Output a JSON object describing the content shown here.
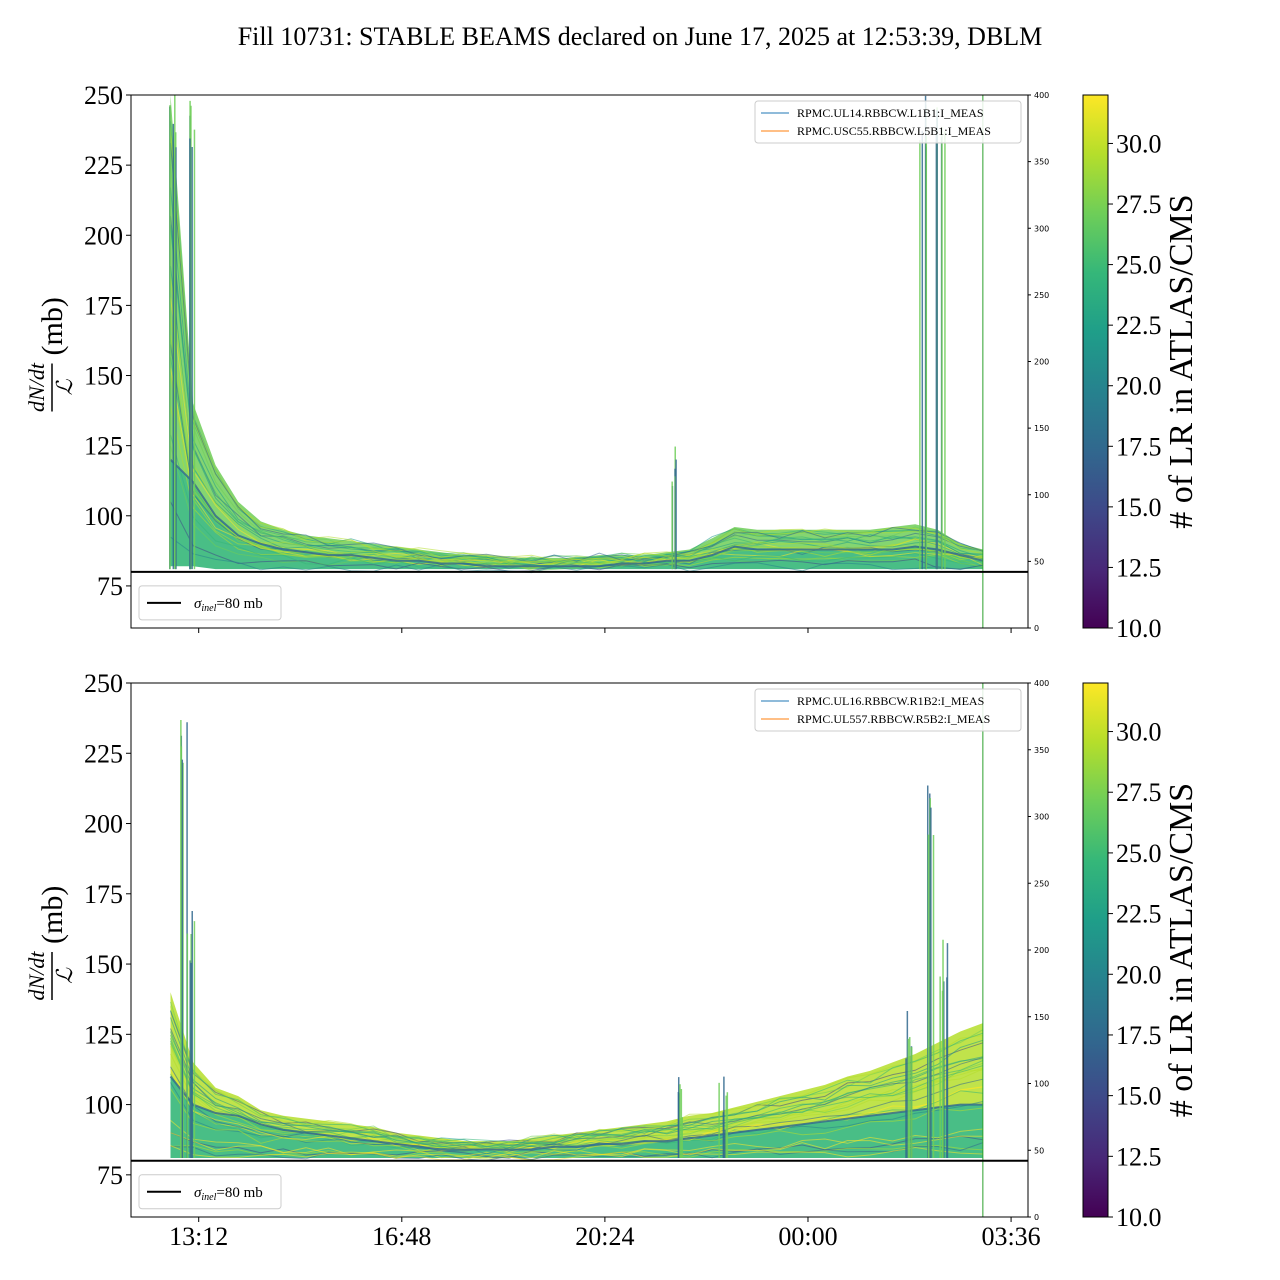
{
  "figure": {
    "title": "Fill 10731: STABLE BEAMS declared on June 17, 2025 at 12:53:39, DBLM"
  },
  "colors": {
    "viridis": [
      "#440154",
      "#482878",
      "#3e4989",
      "#31688e",
      "#26828e",
      "#1f9e89",
      "#35b779",
      "#6ece58",
      "#b5de2b",
      "#fde725"
    ],
    "reference_line": "#000000",
    "legend_line_1": "#1f77b4",
    "legend_line_2": "#ff7f0e",
    "marker_line": "#2ca02c"
  },
  "chart_data": [
    {
      "type": "area",
      "panel": "top",
      "ylabel_numerator": "dN/dt",
      "ylabel_denominator": "ℒ",
      "ylabel_unit": "(mb)",
      "ylim": [
        60,
        250
      ],
      "yticks": [
        "250",
        "225",
        "200",
        "175",
        "150",
        "125",
        "100",
        "75"
      ],
      "ytick_values": [
        250,
        225,
        200,
        175,
        150,
        125,
        100,
        75
      ],
      "y2lim": [
        0,
        400
      ],
      "y2ticks": [
        "400",
        "350",
        "300",
        "250",
        "200",
        "150",
        "100",
        "50",
        "0"
      ],
      "y2tick_values": [
        400,
        350,
        300,
        250,
        200,
        150,
        100,
        50,
        0
      ],
      "xlim_hours": [
        12.0,
        27.9
      ],
      "reference_line": {
        "value": 80,
        "label": "σinel=80 mb",
        "label_main": "σ",
        "label_sub": "inel",
        "label_rest": "=80 mb"
      },
      "marker_x_hours": 27.1,
      "legend": [
        "RPMC.UL14.RBBCW.L1B1:I_MEAS",
        "RPMC.USC55.RBBCW.L5B1:I_MEAS"
      ],
      "legend_location": "top-right",
      "band_x_hours": [
        12.7,
        13.1,
        13.5,
        13.9,
        14.3,
        14.7,
        15.1,
        15.5,
        15.9,
        16.3,
        16.7,
        17.1,
        17.5,
        17.9,
        18.3,
        18.7,
        19.1,
        19.5,
        19.9,
        20.3,
        20.7,
        21.1,
        21.5,
        21.9,
        22.3,
        22.7,
        23.1,
        23.5,
        23.9,
        24.3,
        24.7,
        25.1,
        25.5,
        25.9,
        26.3,
        26.7,
        27.1
      ],
      "band_upper": [
        250,
        140,
        118,
        105,
        98,
        95,
        93,
        92,
        91,
        90,
        89,
        88,
        87,
        86,
        86,
        85,
        85,
        85,
        85,
        86,
        86,
        86,
        87,
        88,
        92,
        96,
        95,
        95,
        95,
        95,
        95,
        95,
        96,
        97,
        95,
        90,
        88
      ],
      "band_median": [
        120,
        112,
        100,
        93,
        90,
        88,
        87,
        86,
        86,
        85,
        84,
        84,
        83,
        83,
        82,
        82,
        82,
        82,
        82,
        82,
        83,
        83,
        84,
        84,
        86,
        89,
        88,
        88,
        88,
        88,
        88,
        88,
        88,
        89,
        88,
        86,
        84
      ],
      "band_lower": [
        82,
        82,
        81,
        81,
        81,
        81,
        81,
        81,
        81,
        81,
        81,
        81,
        81,
        81,
        81,
        81,
        81,
        81,
        81,
        81,
        81,
        81,
        81,
        81,
        81,
        81,
        81,
        81,
        81,
        81,
        81,
        81,
        81,
        81,
        81,
        81,
        81
      ],
      "spikes": [
        {
          "x_hours": 12.75,
          "y_top": 250
        },
        {
          "x_hours": 13.05,
          "y_top": 250
        },
        {
          "x_hours": 21.6,
          "y_top": 125
        },
        {
          "x_hours": 26.05,
          "y_top": 250
        },
        {
          "x_hours": 26.35,
          "y_top": 250
        }
      ]
    },
    {
      "type": "area",
      "panel": "bottom",
      "ylabel_numerator": "dN/dt",
      "ylabel_denominator": "ℒ",
      "ylabel_unit": "(mb)",
      "ylim": [
        60,
        250
      ],
      "yticks": [
        "250",
        "225",
        "200",
        "175",
        "150",
        "125",
        "100",
        "75"
      ],
      "ytick_values": [
        250,
        225,
        200,
        175,
        150,
        125,
        100,
        75
      ],
      "y2lim": [
        0,
        400
      ],
      "y2ticks": [
        "400",
        "350",
        "300",
        "250",
        "200",
        "150",
        "100",
        "50",
        "0"
      ],
      "y2tick_values": [
        400,
        350,
        300,
        250,
        200,
        150,
        100,
        50,
        0
      ],
      "xlim_hours": [
        12.0,
        27.9
      ],
      "xticks": [
        "13:12",
        "16:48",
        "20:24",
        "00:00",
        "03:36"
      ],
      "xtick_hours": [
        13.2,
        16.8,
        20.4,
        24.0,
        27.6
      ],
      "reference_line": {
        "value": 80,
        "label": "σinel=80 mb",
        "label_main": "σ",
        "label_sub": "inel",
        "label_rest": "=80 mb"
      },
      "marker_x_hours": 27.1,
      "legend": [
        "RPMC.UL16.RBBCW.R1B2:I_MEAS",
        "RPMC.UL557.RBBCW.R5B2:I_MEAS"
      ],
      "legend_location": "top-right",
      "band_x_hours": [
        12.7,
        13.1,
        13.5,
        13.9,
        14.3,
        14.7,
        15.1,
        15.5,
        15.9,
        16.3,
        16.7,
        17.1,
        17.5,
        17.9,
        18.3,
        18.7,
        19.1,
        19.5,
        19.9,
        20.3,
        20.7,
        21.1,
        21.5,
        21.9,
        22.3,
        22.7,
        23.1,
        23.5,
        23.9,
        24.3,
        24.7,
        25.1,
        25.5,
        25.9,
        26.3,
        26.7,
        27.1
      ],
      "band_upper": [
        140,
        115,
        106,
        103,
        98,
        96,
        95,
        94,
        93,
        92,
        90,
        89,
        88,
        87,
        87,
        87,
        88,
        89,
        90,
        91,
        92,
        93,
        94,
        96,
        97,
        99,
        101,
        103,
        105,
        107,
        110,
        112,
        115,
        118,
        122,
        126,
        129
      ],
      "band_median": [
        110,
        100,
        97,
        96,
        93,
        91,
        90,
        89,
        88,
        87,
        86,
        85,
        84,
        84,
        84,
        84,
        84,
        85,
        85,
        86,
        86,
        87,
        87,
        88,
        89,
        90,
        91,
        92,
        93,
        94,
        95,
        96,
        97,
        98,
        99,
        100,
        100
      ],
      "band_lower": [
        81,
        81,
        81,
        81,
        81,
        81,
        81,
        81,
        81,
        81,
        81,
        81,
        81,
        81,
        81,
        81,
        81,
        81,
        81,
        81,
        81,
        81,
        81,
        81,
        81,
        81,
        81,
        81,
        81,
        81,
        81,
        81,
        81,
        81,
        81,
        81,
        81
      ],
      "spikes": [
        {
          "x_hours": 12.95,
          "y_top": 240
        },
        {
          "x_hours": 13.05,
          "y_top": 170
        },
        {
          "x_hours": 21.7,
          "y_top": 115
        },
        {
          "x_hours": 22.5,
          "y_top": 110
        },
        {
          "x_hours": 25.8,
          "y_top": 135
        },
        {
          "x_hours": 26.2,
          "y_top": 215
        },
        {
          "x_hours": 26.4,
          "y_top": 160
        }
      ]
    }
  ],
  "colorbars": [
    {
      "label": "# of LR in ATLAS/CMS",
      "range": [
        10.0,
        32.0
      ],
      "ticks": [
        "30.0",
        "27.5",
        "25.0",
        "22.5",
        "20.0",
        "17.5",
        "15.0",
        "12.5",
        "10.0"
      ],
      "tick_values": [
        30.0,
        27.5,
        25.0,
        22.5,
        20.0,
        17.5,
        15.0,
        12.5,
        10.0
      ]
    },
    {
      "label": "# of LR in ATLAS/CMS",
      "range": [
        10.0,
        32.0
      ],
      "ticks": [
        "30.0",
        "27.5",
        "25.0",
        "22.5",
        "20.0",
        "17.5",
        "15.0",
        "12.5",
        "10.0"
      ],
      "tick_values": [
        30.0,
        27.5,
        25.0,
        22.5,
        20.0,
        17.5,
        15.0,
        12.5,
        10.0
      ]
    }
  ]
}
